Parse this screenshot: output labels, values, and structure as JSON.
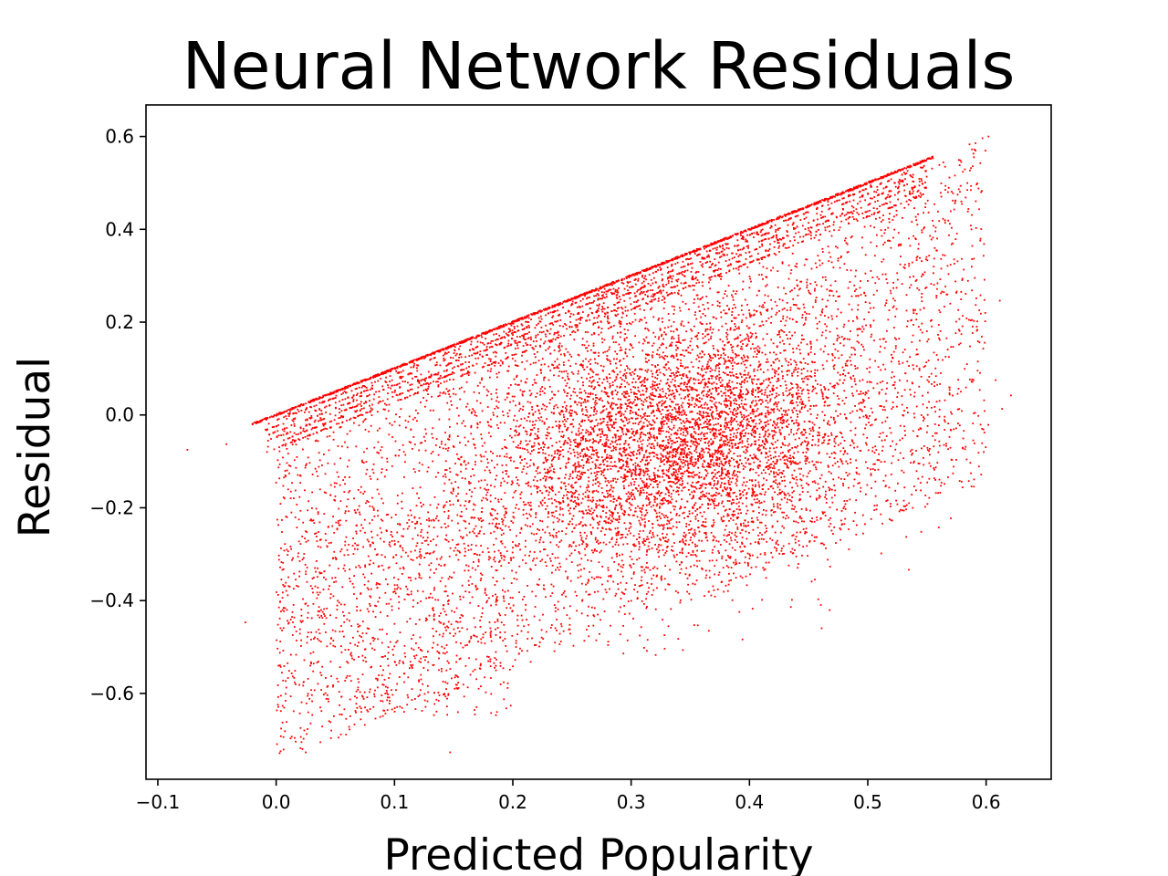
{
  "chart_data": {
    "type": "scatter",
    "title": "Neural Network Residuals",
    "xlabel": "Predicted Popularity",
    "ylabel": "Residual",
    "xlim": [
      -0.11,
      0.655
    ],
    "ylim": [
      -0.785,
      0.668
    ],
    "x_ticks": [
      -0.1,
      0.0,
      0.1,
      0.2,
      0.3,
      0.4,
      0.5,
      0.6
    ],
    "x_tick_labels": [
      "−0.1",
      "0.0",
      "0.1",
      "0.2",
      "0.3",
      "0.4",
      "0.5",
      "0.6"
    ],
    "y_ticks": [
      0.6,
      0.4,
      0.2,
      0.0,
      -0.2,
      -0.4,
      -0.6
    ],
    "y_tick_labels": [
      "0.6",
      "0.4",
      "0.2",
      "0.0",
      "−0.2",
      "−0.4",
      "−0.6"
    ],
    "grid": false,
    "marker_color": "#ff0000",
    "series": [
      {
        "points_description": "dense residual cloud; upper edge follows residual = predicted - 0.0 (y ≈ x), lower boundary approx residual ≥ -0.75",
        "dense_core": {
          "x_center": 0.34,
          "y_center": -0.05
        },
        "upper_edge": {
          "x_range": [
            -0.02,
            0.555
          ],
          "slope": 1.0
        },
        "outliers": [
          [
            -0.075,
            -0.075
          ],
          [
            -0.042,
            -0.063
          ],
          [
            -0.026,
            -0.447
          ],
          [
            0.004,
            -0.638
          ],
          [
            0.02,
            -0.643
          ],
          [
            0.025,
            -0.727
          ],
          [
            0.147,
            -0.727
          ],
          [
            0.602,
            0.6
          ],
          [
            0.586,
            0.583
          ],
          [
            0.621,
            0.042
          ],
          [
            0.608,
            0.075
          ],
          [
            0.598,
            -0.08
          ]
        ]
      }
    ]
  }
}
